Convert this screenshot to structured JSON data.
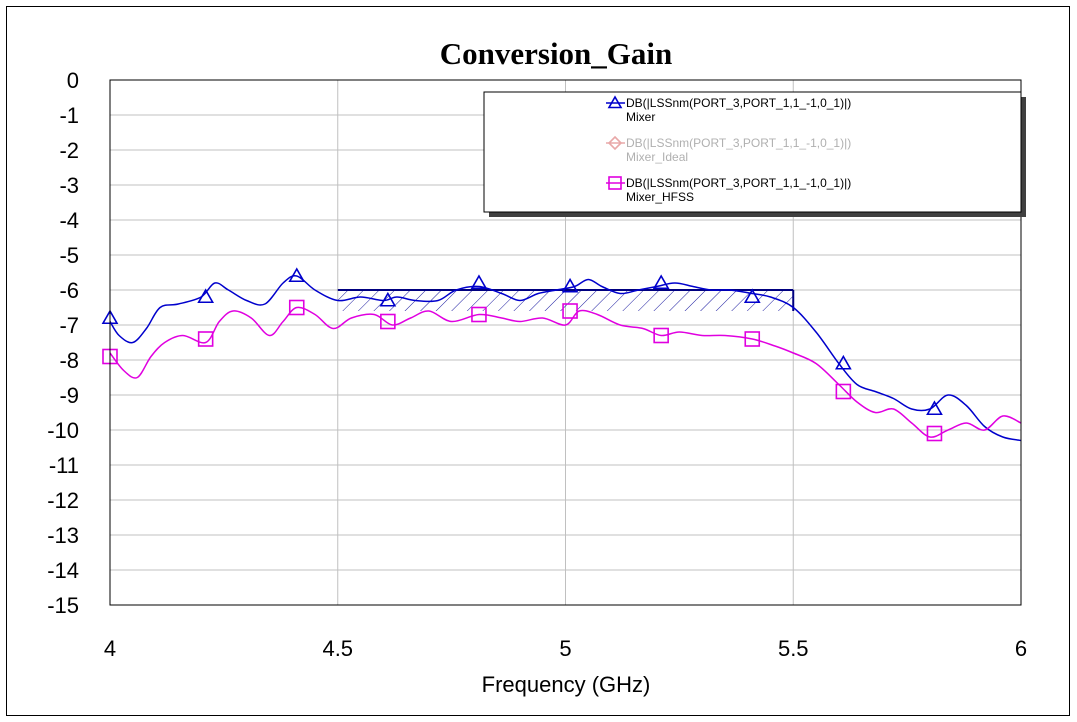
{
  "chart_data": {
    "type": "line",
    "title": "Conversion_Gain",
    "xlabel": "Frequency (GHz)",
    "ylabel": "",
    "xlim": [
      4,
      6
    ],
    "ylim": [
      -15,
      0
    ],
    "x_ticks": [
      "4",
      "4.5",
      "5",
      "5.5",
      "6"
    ],
    "y_ticks": [
      "0",
      "-1",
      "-2",
      "-3",
      "-4",
      "-5",
      "-6",
      "-7",
      "-8",
      "-9",
      "-10",
      "-11",
      "-12",
      "-13",
      "-14",
      "-15"
    ],
    "grid": true,
    "legend_position": "top-right",
    "spec_region": {
      "x": [
        4.5,
        5.5
      ],
      "y": [
        -6.6,
        -6.0
      ]
    },
    "series": [
      {
        "name": "DB(|LSSnm(PORT_3,PORT_1,1_-1,0_1)|)",
        "subname": "Mixer",
        "color": "#0000cc",
        "marker": "triangle",
        "x": [
          4.0,
          4.02,
          4.05,
          4.08,
          4.11,
          4.15,
          4.2,
          4.23,
          4.26,
          4.3,
          4.34,
          4.38,
          4.41,
          4.45,
          4.5,
          4.55,
          4.6,
          4.63,
          4.67,
          4.72,
          4.76,
          4.81,
          4.86,
          4.9,
          4.94,
          4.98,
          5.02,
          5.05,
          5.08,
          5.12,
          5.16,
          5.2,
          5.24,
          5.28,
          5.32,
          5.36,
          5.41,
          5.45,
          5.5,
          5.55,
          5.6,
          5.64,
          5.68,
          5.72,
          5.76,
          5.8,
          5.84,
          5.88,
          5.92,
          5.96,
          6.0
        ],
        "y": [
          -6.9,
          -7.3,
          -7.5,
          -7.1,
          -6.5,
          -6.4,
          -6.2,
          -5.8,
          -6.0,
          -6.3,
          -6.4,
          -5.8,
          -5.6,
          -6.0,
          -6.3,
          -6.2,
          -6.3,
          -6.2,
          -6.3,
          -6.3,
          -6.0,
          -5.9,
          -6.1,
          -6.3,
          -6.1,
          -6.0,
          -5.9,
          -5.7,
          -5.9,
          -6.1,
          -6.0,
          -5.9,
          -5.8,
          -5.9,
          -6.0,
          -6.0,
          -6.1,
          -6.2,
          -6.5,
          -7.2,
          -8.1,
          -8.7,
          -8.9,
          -9.1,
          -9.4,
          -9.4,
          -9.0,
          -9.3,
          -9.9,
          -10.2,
          -10.3
        ],
        "markers_x": [
          4.0,
          4.21,
          4.41,
          4.61,
          4.81,
          5.01,
          5.21,
          5.41,
          5.61,
          5.81
        ],
        "markers_y": [
          -6.8,
          -6.2,
          -5.6,
          -6.3,
          -5.8,
          -5.9,
          -5.8,
          -6.2,
          -8.1,
          -9.4
        ]
      },
      {
        "name": "DB(|LSSnm(PORT_3,PORT_1,1_-1,0_1)|)",
        "subname": "Mixer_Ideal",
        "color": "#e8a8a8",
        "marker": "diamond",
        "x": [],
        "y": []
      },
      {
        "name": "DB(|LSSnm(PORT_3,PORT_1,1_-1,0_1)|)",
        "subname": "Mixer_HFSS",
        "color": "#e000e0",
        "marker": "square",
        "x": [
          4.0,
          4.03,
          4.06,
          4.09,
          4.12,
          4.16,
          4.21,
          4.24,
          4.27,
          4.31,
          4.35,
          4.38,
          4.41,
          4.45,
          4.49,
          4.53,
          4.58,
          4.62,
          4.66,
          4.7,
          4.75,
          4.81,
          4.86,
          4.9,
          4.95,
          5.0,
          5.03,
          5.07,
          5.12,
          5.17,
          5.21,
          5.25,
          5.3,
          5.35,
          5.41,
          5.46,
          5.5,
          5.55,
          5.6,
          5.64,
          5.68,
          5.72,
          5.76,
          5.8,
          5.84,
          5.88,
          5.92,
          5.96,
          6.0
        ],
        "y": [
          -7.8,
          -8.3,
          -8.5,
          -7.9,
          -7.5,
          -7.3,
          -7.5,
          -6.9,
          -6.6,
          -6.8,
          -7.3,
          -6.9,
          -6.5,
          -6.7,
          -7.1,
          -6.8,
          -6.7,
          -7.0,
          -6.8,
          -6.6,
          -6.9,
          -6.7,
          -6.8,
          -6.9,
          -6.8,
          -7.0,
          -6.6,
          -6.7,
          -7.0,
          -7.1,
          -7.3,
          -7.2,
          -7.3,
          -7.3,
          -7.4,
          -7.6,
          -7.8,
          -8.1,
          -8.7,
          -9.2,
          -9.5,
          -9.4,
          -9.8,
          -10.2,
          -10.0,
          -9.8,
          -10.0,
          -9.6,
          -9.8
        ],
        "markers_x": [
          4.0,
          4.21,
          4.41,
          4.61,
          4.81,
          5.01,
          5.21,
          5.41,
          5.61,
          5.81
        ],
        "markers_y": [
          -7.9,
          -7.4,
          -6.5,
          -6.9,
          -6.7,
          -6.6,
          -7.3,
          -7.4,
          -8.9,
          -10.1
        ]
      }
    ]
  }
}
